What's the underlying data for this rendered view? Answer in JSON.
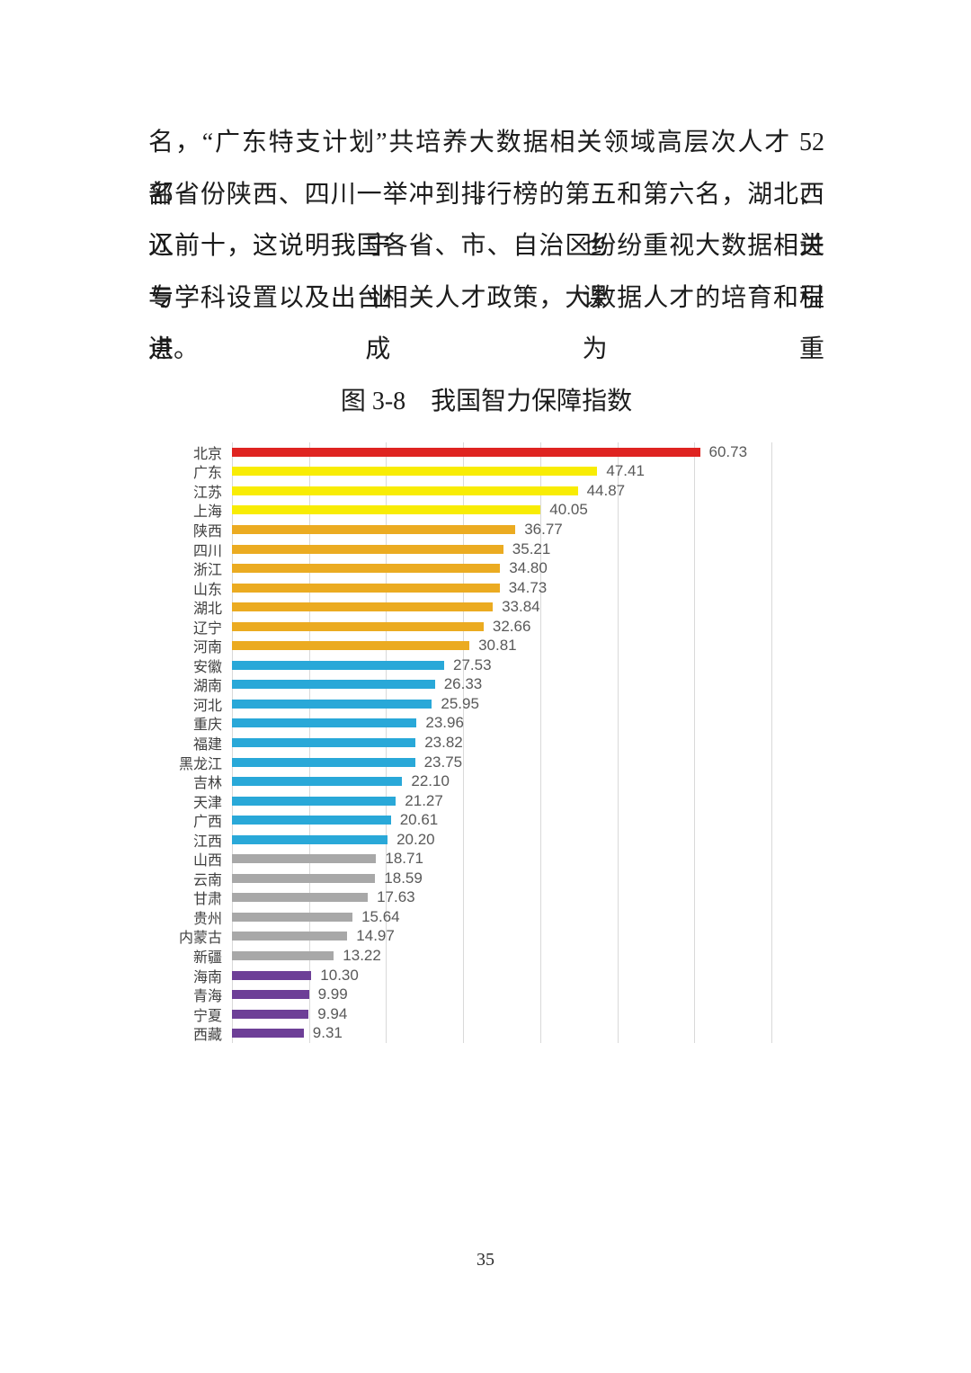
{
  "page": {
    "number": "35",
    "background": "#ffffff"
  },
  "paragraph": {
    "lines": [
      "名，“广东特支计划”共培养大数据相关领域高层次人才 52 名。西",
      "部省份陕西、四川一举冲到排行榜的第五和第六名，湖北、辽宁也进",
      "入前十，这说明我国各省、市、自治区纷纷重视大数据相关专业课程",
      "与学科设置以及出台相关人才政策，大数据人才的培育和引进成为重",
      "点。"
    ]
  },
  "figure": {
    "caption": "图 3-8　我国智力保障指数"
  },
  "chart_data": {
    "type": "bar",
    "orientation": "horizontal",
    "title": "图 3-8 我国智力保障指数",
    "xlabel": "",
    "ylabel": "",
    "xlim": [
      0,
      70
    ],
    "gridline_interval": 10,
    "grid": true,
    "legend": "none",
    "categories": [
      "北京",
      "广东",
      "江苏",
      "上海",
      "陕西",
      "四川",
      "浙江",
      "山东",
      "湖北",
      "辽宁",
      "河南",
      "安徽",
      "湖南",
      "河北",
      "重庆",
      "福建",
      "黑龙江",
      "吉林",
      "天津",
      "广西",
      "江西",
      "山西",
      "云南",
      "甘肃",
      "贵州",
      "内蒙古",
      "新疆",
      "海南",
      "青海",
      "宁夏",
      "西藏"
    ],
    "values": [
      60.73,
      47.41,
      44.87,
      40.05,
      36.77,
      35.21,
      34.8,
      34.73,
      33.84,
      32.66,
      30.81,
      27.53,
      26.33,
      25.95,
      23.96,
      23.82,
      23.75,
      22.1,
      21.27,
      20.61,
      20.2,
      18.71,
      18.59,
      17.63,
      15.64,
      14.97,
      13.22,
      10.3,
      9.99,
      9.94,
      9.31
    ],
    "value_labels": [
      "60.73",
      "47.41",
      "44.87",
      "40.05",
      "36.77",
      "35.21",
      "34.80",
      "34.73",
      "33.84",
      "32.66",
      "30.81",
      "27.53",
      "26.33",
      "25.95",
      "23.96",
      "23.82",
      "23.75",
      "22.10",
      "21.27",
      "20.61",
      "20.20",
      "18.71",
      "18.59",
      "17.63",
      "15.64",
      "14.97",
      "13.22",
      "10.30",
      "9.99",
      "9.94",
      "9.31"
    ],
    "bar_colors": [
      "#df2421",
      "#f8ec04",
      "#f8ec04",
      "#f8ec04",
      "#ebab21",
      "#ebab21",
      "#ebab21",
      "#ebab21",
      "#ebab21",
      "#ebab21",
      "#ebab21",
      "#29a8d8",
      "#29a8d8",
      "#29a8d8",
      "#29a8d8",
      "#29a8d8",
      "#29a8d8",
      "#29a8d8",
      "#29a8d8",
      "#29a8d8",
      "#29a8d8",
      "#a8a8a8",
      "#a8a8a8",
      "#a8a8a8",
      "#a8a8a8",
      "#a8a8a8",
      "#a8a8a8",
      "#6d3f97",
      "#6d3f97",
      "#6d3f97",
      "#6d3f97"
    ],
    "colors": {
      "group_red": "#df2421",
      "group_yellow": "#f8ec04",
      "group_orange": "#ebab21",
      "group_blue": "#29a8d8",
      "group_gray": "#a8a8a8",
      "group_purple": "#6d3f97",
      "gridline": "#d9d9d9",
      "value_label_text": "#595959",
      "category_label_text": "#3f3f3f"
    }
  }
}
